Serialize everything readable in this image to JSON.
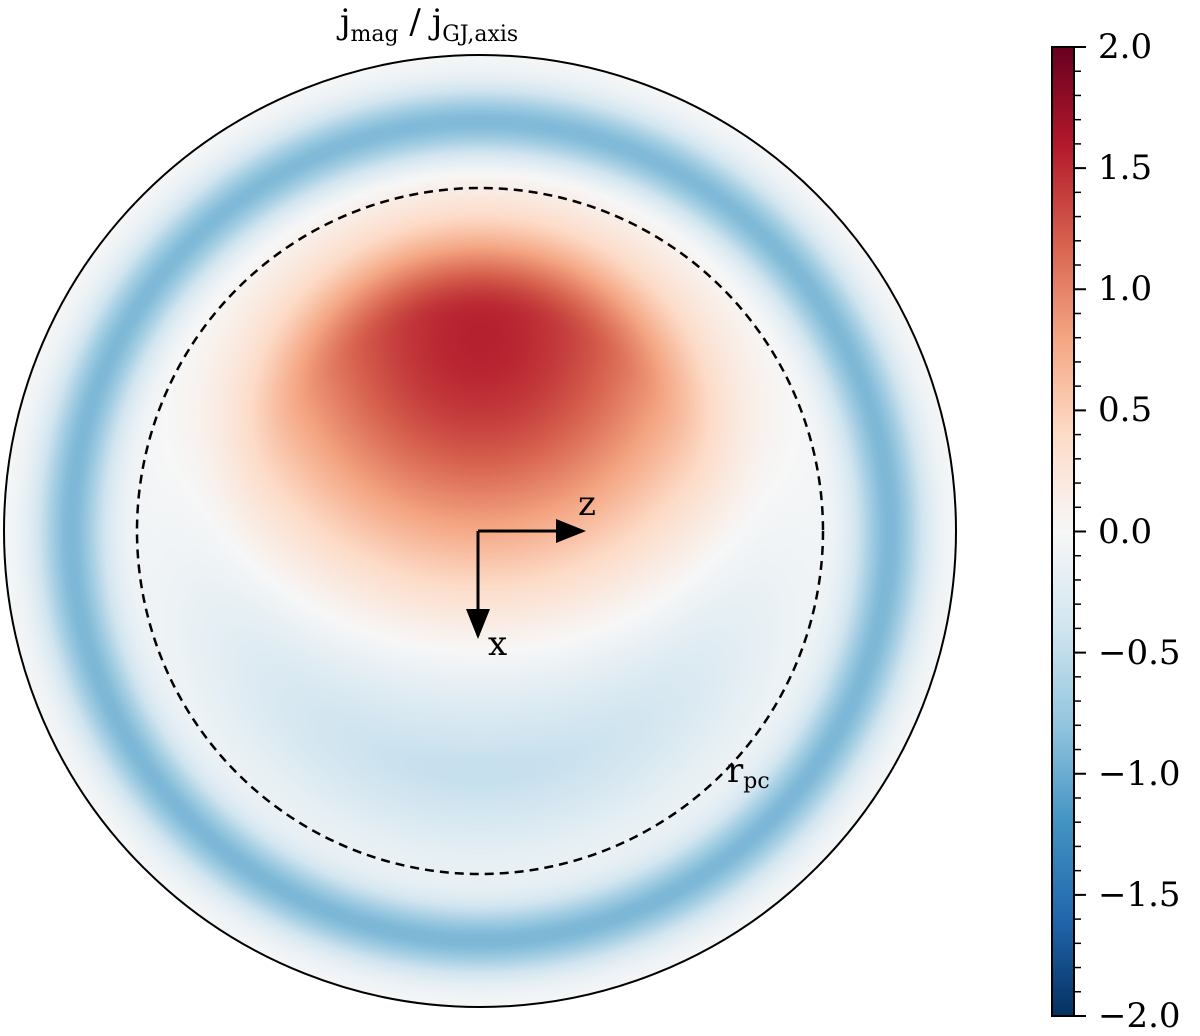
{
  "chart_data": {
    "type": "heatmap",
    "title": {
      "main_a": "j",
      "sub_a": "mag",
      "sep": " / ",
      "main_b": "j",
      "sub_b": "GJ,axis"
    },
    "domain": "polar-cap disk",
    "colormap": "RdBu_r",
    "colorbar": {
      "vmin": -2.0,
      "vmax": 2.0,
      "ticks": [
        2.0,
        1.5,
        1.0,
        0.5,
        0.0,
        -0.5,
        -1.0,
        -1.5,
        -2.0
      ],
      "tick_labels": [
        "2.0",
        "1.5",
        "1.0",
        "0.5",
        "0.0",
        "−0.5",
        "−1.0",
        "−1.5",
        "−2.0"
      ],
      "minor_step": 0.1
    },
    "annotations": {
      "z_axis": "z",
      "x_axis": "x",
      "rpc_main": "r",
      "rpc_sub": "pc"
    },
    "features": {
      "peak_value_approx": 1.6,
      "ring_value_approx": -0.9,
      "dashed_circle": "r_pc"
    }
  }
}
